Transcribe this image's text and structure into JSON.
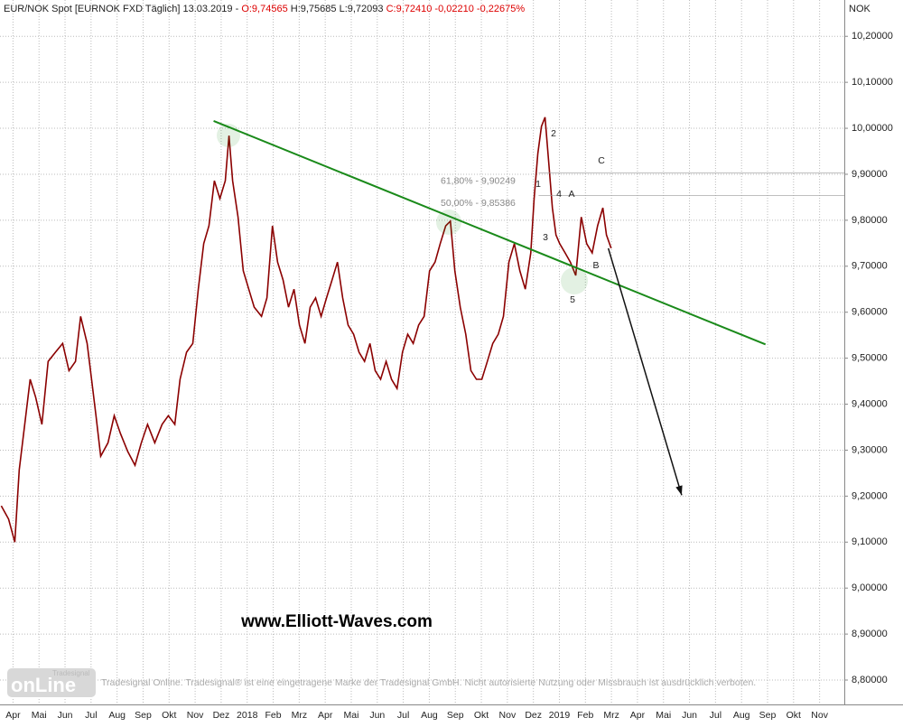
{
  "header": {
    "instrument": "EUR/NOK Spot [EURNOK FXD  Täglich]",
    "date": "13.03.2019",
    "open": "O:9,74565",
    "high": "H:9,75685",
    "low": "L:9,72093",
    "close": "C:9,72410",
    "change": "-0,02210",
    "change_pct": "-0,22675%"
  },
  "chart_data": {
    "type": "line",
    "color": "#8b0000",
    "currency": "NOK",
    "xlim": [
      0,
      32.45
    ],
    "ylim": [
      8.747,
      10.279
    ],
    "grid": true,
    "xticks": [
      {
        "value": 0.5,
        "label": "Apr"
      },
      {
        "value": 1.5,
        "label": "Mai"
      },
      {
        "value": 2.5,
        "label": "Jun"
      },
      {
        "value": 3.5,
        "label": "Jul"
      },
      {
        "value": 4.5,
        "label": "Aug"
      },
      {
        "value": 5.5,
        "label": "Sep"
      },
      {
        "value": 6.5,
        "label": "Okt"
      },
      {
        "value": 7.5,
        "label": "Nov"
      },
      {
        "value": 8.5,
        "label": "Dez"
      },
      {
        "value": 9.5,
        "label": "2018"
      },
      {
        "value": 10.5,
        "label": "Feb"
      },
      {
        "value": 11.5,
        "label": "Mrz"
      },
      {
        "value": 12.5,
        "label": "Apr"
      },
      {
        "value": 13.5,
        "label": "Mai"
      },
      {
        "value": 14.5,
        "label": "Jun"
      },
      {
        "value": 15.5,
        "label": "Jul"
      },
      {
        "value": 16.5,
        "label": "Aug"
      },
      {
        "value": 17.5,
        "label": "Sep"
      },
      {
        "value": 18.5,
        "label": "Okt"
      },
      {
        "value": 19.5,
        "label": "Nov"
      },
      {
        "value": 20.5,
        "label": "Dez"
      },
      {
        "value": 21.5,
        "label": "2019"
      },
      {
        "value": 22.5,
        "label": "Feb"
      },
      {
        "value": 23.5,
        "label": "Mrz"
      },
      {
        "value": 24.5,
        "label": "Apr"
      },
      {
        "value": 25.5,
        "label": "Mai"
      },
      {
        "value": 26.5,
        "label": "Jun"
      },
      {
        "value": 27.5,
        "label": "Jul"
      },
      {
        "value": 28.5,
        "label": "Aug"
      },
      {
        "value": 29.5,
        "label": "Sep"
      },
      {
        "value": 30.5,
        "label": "Okt"
      },
      {
        "value": 31.5,
        "label": "Nov"
      }
    ],
    "yticks": [
      {
        "value": 8.8,
        "label": "8,80000"
      },
      {
        "value": 8.9,
        "label": "8,90000"
      },
      {
        "value": 9.0,
        "label": "9,00000"
      },
      {
        "value": 9.1,
        "label": "9,10000"
      },
      {
        "value": 9.2,
        "label": "9,20000"
      },
      {
        "value": 9.3,
        "label": "9,30000"
      },
      {
        "value": 9.4,
        "label": "9,40000"
      },
      {
        "value": 9.5,
        "label": "9,50000"
      },
      {
        "value": 9.6,
        "label": "9,60000"
      },
      {
        "value": 9.7,
        "label": "9,70000"
      },
      {
        "value": 9.8,
        "label": "9,80000"
      },
      {
        "value": 9.9,
        "label": "9,90000"
      },
      {
        "value": 10.0,
        "label": "10,00000"
      },
      {
        "value": 10.1,
        "label": "10,10000"
      },
      {
        "value": 10.2,
        "label": "10,20000"
      }
    ],
    "x": [
      0.05,
      0.33,
      0.57,
      0.74,
      0.95,
      1.16,
      1.37,
      1.61,
      1.85,
      2.13,
      2.41,
      2.65,
      2.9,
      3.1,
      3.35,
      3.52,
      3.69,
      3.87,
      4.15,
      4.39,
      4.63,
      4.91,
      5.19,
      5.43,
      5.67,
      5.95,
      6.23,
      6.47,
      6.72,
      6.92,
      7.17,
      7.41,
      7.62,
      7.83,
      8.03,
      8.24,
      8.45,
      8.66,
      8.8,
      8.94,
      9.15,
      9.35,
      9.56,
      9.77,
      10.05,
      10.26,
      10.47,
      10.67,
      10.88,
      11.09,
      11.3,
      11.51,
      11.72,
      11.92,
      12.13,
      12.34,
      12.55,
      12.76,
      12.97,
      13.17,
      13.38,
      13.59,
      13.8,
      14.01,
      14.22,
      14.42,
      14.63,
      14.84,
      15.05,
      15.26,
      15.47,
      15.67,
      15.88,
      16.09,
      16.3,
      16.51,
      16.72,
      16.92,
      17.13,
      17.31,
      17.48,
      17.69,
      17.9,
      18.1,
      18.31,
      18.52,
      18.73,
      18.94,
      19.15,
      19.35,
      19.56,
      19.77,
      19.98,
      20.19,
      20.4,
      20.53,
      20.67,
      20.81,
      20.95,
      21.09,
      21.23,
      21.37,
      21.51,
      21.72,
      21.92,
      22.13,
      22.34,
      22.55,
      22.76,
      22.97,
      23.17,
      23.31,
      23.49
    ],
    "values": [
      9.179,
      9.15,
      9.1,
      9.257,
      9.356,
      9.454,
      9.415,
      9.356,
      9.493,
      9.513,
      9.532,
      9.473,
      9.493,
      9.591,
      9.532,
      9.454,
      9.375,
      9.287,
      9.316,
      9.375,
      9.336,
      9.297,
      9.267,
      9.316,
      9.356,
      9.316,
      9.356,
      9.375,
      9.356,
      9.454,
      9.513,
      9.532,
      9.65,
      9.749,
      9.788,
      9.886,
      9.847,
      9.886,
      9.984,
      9.886,
      9.807,
      9.69,
      9.65,
      9.611,
      9.591,
      9.631,
      9.788,
      9.709,
      9.67,
      9.611,
      9.65,
      9.572,
      9.532,
      9.611,
      9.631,
      9.591,
      9.631,
      9.67,
      9.709,
      9.631,
      9.572,
      9.552,
      9.513,
      9.493,
      9.532,
      9.473,
      9.454,
      9.493,
      9.454,
      9.434,
      9.513,
      9.552,
      9.532,
      9.572,
      9.591,
      9.69,
      9.709,
      9.749,
      9.788,
      9.798,
      9.69,
      9.611,
      9.552,
      9.473,
      9.454,
      9.454,
      9.493,
      9.532,
      9.552,
      9.591,
      9.709,
      9.749,
      9.69,
      9.65,
      9.729,
      9.847,
      9.945,
      10.004,
      10.024,
      9.925,
      9.827,
      9.768,
      9.749,
      9.729,
      9.709,
      9.68,
      9.807,
      9.749,
      9.729,
      9.788,
      9.827,
      9.768,
      9.739
    ],
    "trendline": {
      "color": "#1a8a1a",
      "x": [
        8.21,
        29.42
      ],
      "y": [
        10.016,
        9.53
      ]
    },
    "arrow": {
      "color": "#111111",
      "x": [
        23.38,
        26.2
      ],
      "y": [
        9.739,
        9.202
      ]
    },
    "fib_levels": [
      {
        "value": 9.90249,
        "label": "61,80% - 9,90249",
        "start": 20.7
      },
      {
        "value": 9.85386,
        "label": "50,00% - 9,85386",
        "start": 20.7
      }
    ],
    "wave_labels": [
      "1",
      "2",
      "3",
      "4",
      "5",
      "A",
      "B",
      "C"
    ],
    "website": "www.Elliott-Waves.com",
    "watermark_logo": "onLine",
    "watermark_brand": "Tradesignal",
    "disclaimer": "Tradesignal Online. Tradesignal® ist eine eingetragene Marke der Tradesignal GmbH. Nicht autorisierte Nutzung oder Missbrauch ist ausdrücklich verboten."
  }
}
